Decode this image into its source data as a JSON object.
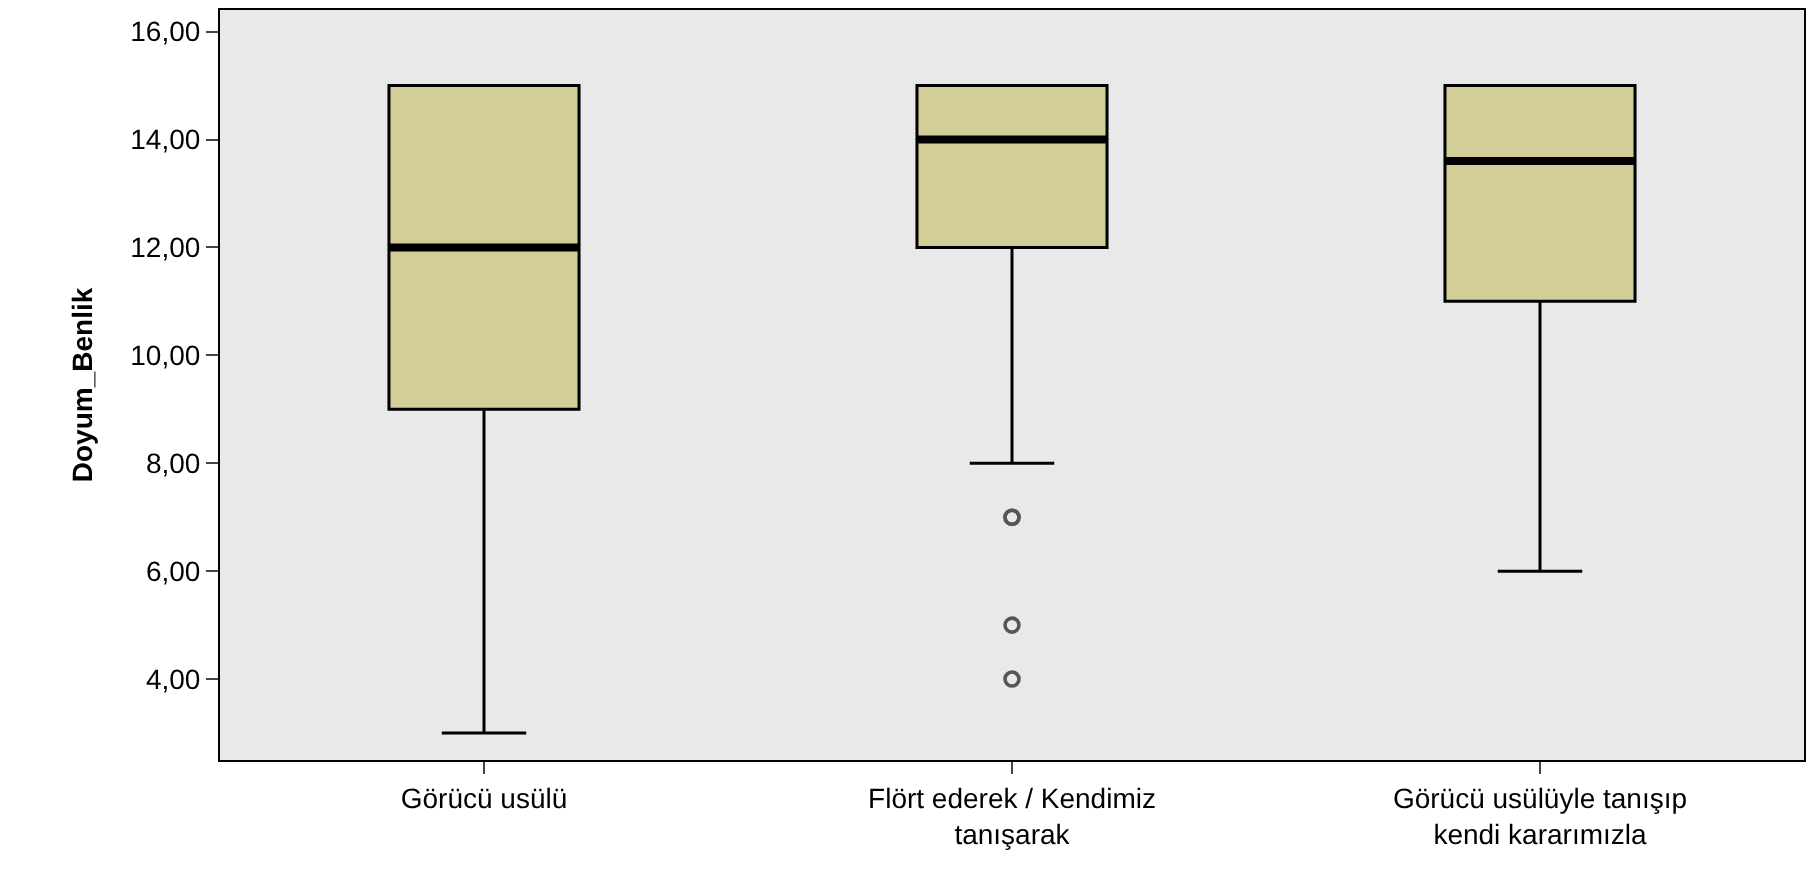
{
  "chart_data": {
    "type": "box",
    "ylabel": "Doyum_Benlik",
    "categories": [
      "Görücü usülü",
      "Flört ederek / Kendimiz\ntanışarak",
      "Görücü usülüyle tanışıp\nkendi kararımızla"
    ],
    "color": "#d3ce97",
    "boxes": [
      {
        "low": 3,
        "q1": 9,
        "median": 12,
        "q3": 15,
        "high": 15
      },
      {
        "low": 8,
        "q1": 12,
        "median": 14,
        "q3": 15,
        "high": 15,
        "outliers": [
          7,
          7,
          5,
          4
        ]
      },
      {
        "low": 6,
        "q1": 11,
        "median": 13.6,
        "q3": 15,
        "high": 15
      }
    ],
    "ylim": [
      2.5,
      16.4
    ],
    "yticks": [
      {
        "value": 4,
        "label": "4,00"
      },
      {
        "value": 6,
        "label": "6,00"
      },
      {
        "value": 8,
        "label": "8,00"
      },
      {
        "value": 10,
        "label": "10,00"
      },
      {
        "value": 12,
        "label": "12,00"
      },
      {
        "value": 14,
        "label": "14,00"
      },
      {
        "value": 16,
        "label": "16,00"
      }
    ],
    "grid": false
  }
}
